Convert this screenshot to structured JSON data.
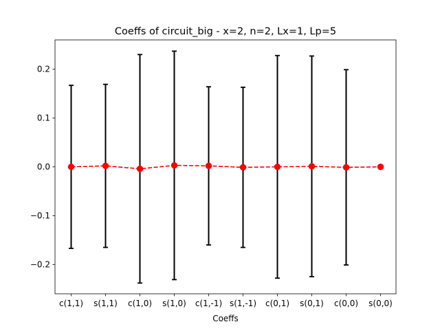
{
  "chart_data": {
    "type": "scatter",
    "title": "Coeffs of circuit_big - x=2, n=2, Lx=1, Lp=5",
    "xlabel": "Coeffs",
    "ylabel": "",
    "categories": [
      "c(1,1)",
      "s(1,1)",
      "c(1,0)",
      "s(1,0)",
      "c(1,-1)",
      "s(1,-1)",
      "c(0,1)",
      "s(0,1)",
      "c(0,0)",
      "s(0,0)"
    ],
    "series": [
      {
        "values": [
          0.0,
          0.002,
          -0.004,
          0.003,
          0.002,
          -0.001,
          0.0,
          0.001,
          -0.001,
          0.0
        ],
        "errors": [
          0.167,
          0.167,
          0.234,
          0.234,
          0.162,
          0.164,
          0.228,
          0.226,
          0.2,
          0.0
        ],
        "color": "#ff0000",
        "errorbar_color": "#000000",
        "linestyle": "dashed",
        "marker": "circle"
      }
    ],
    "ylim": [
      -0.26,
      0.26
    ],
    "yticks": [
      -0.2,
      -0.1,
      0.0,
      0.1,
      0.2
    ],
    "ytick_labels": [
      "−0.2",
      "−0.1",
      "0.0",
      "0.1",
      "0.2"
    ],
    "grid": false,
    "legend": "none"
  }
}
